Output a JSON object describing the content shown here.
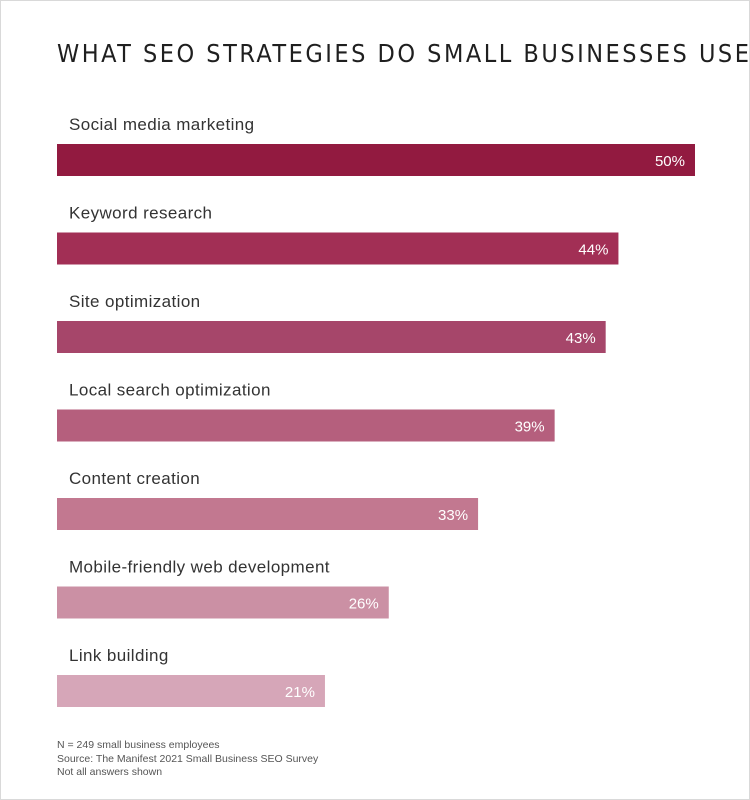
{
  "title": "WHAT SEO STRATEGIES DO SMALL BUSINESSES USE?",
  "notes": {
    "sample": "N = 249 small business employees",
    "source": "Source: The Manifest 2021 Small Business SEO Survey",
    "disclaimer": "Not all answers shown"
  },
  "chart_data": {
    "type": "bar",
    "orientation": "horizontal",
    "title": "WHAT SEO STRATEGIES DO SMALL BUSINESSES USE?",
    "categories": [
      "Social media marketing",
      "Keyword research",
      "Site optimization",
      "Local search optimization",
      "Content creation",
      "Mobile-friendly web development",
      "Link building"
    ],
    "values": [
      50,
      44,
      43,
      39,
      33,
      26,
      21
    ],
    "value_labels": [
      "50%",
      "44%",
      "43%",
      "39%",
      "33%",
      "26%",
      "21%"
    ],
    "unit": "%",
    "xlim": [
      0,
      50
    ],
    "grid": false,
    "legend": "none",
    "colors": [
      "#921a40",
      "#a22f55",
      "#a6466a",
      "#b55f7d",
      "#c27890",
      "#cb90a4",
      "#d6a6b8"
    ]
  }
}
